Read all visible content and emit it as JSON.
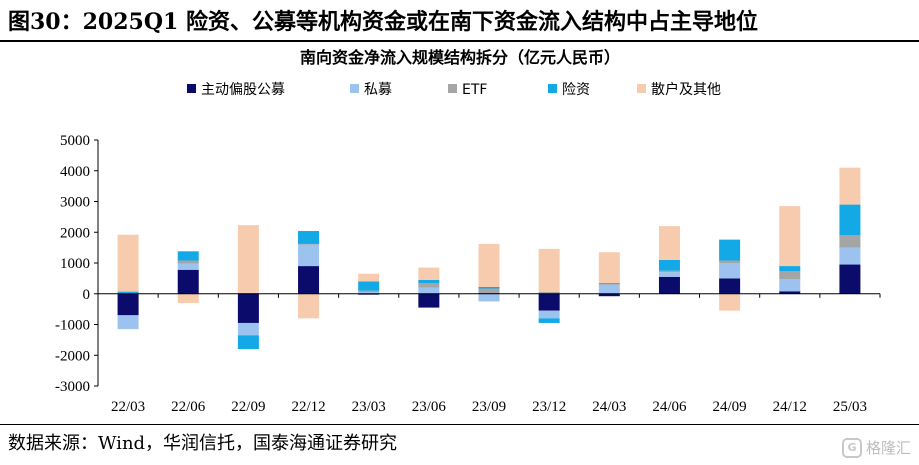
{
  "header": {
    "title": "图30：2025Q1 险资、公募等机构资金或在南下资金流入结构中占主导地位"
  },
  "footer": {
    "source": "数据来源：Wind，华润信托，国泰海通证券研究"
  },
  "watermark": {
    "logo": "G",
    "text": "格隆汇"
  },
  "chart_data": {
    "type": "bar",
    "stacked": true,
    "title": "南向资金净流入规模结构拆分（亿元人民币）",
    "xlabel": "",
    "ylabel": "",
    "ylim": [
      -3000,
      5000
    ],
    "yticks": [
      -3000,
      -2000,
      -1000,
      0,
      1000,
      2000,
      3000,
      4000,
      5000
    ],
    "legend_position": "top",
    "categories": [
      "22/03",
      "22/06",
      "22/09",
      "22/12",
      "23/03",
      "23/06",
      "23/09",
      "23/12",
      "24/03",
      "24/06",
      "24/09",
      "24/12",
      "25/03"
    ],
    "series": [
      {
        "name": "主动偏股公募",
        "color": "#0b0b6b",
        "values": [
          -700,
          780,
          -950,
          900,
          -30,
          -450,
          20,
          -550,
          -80,
          550,
          500,
          80,
          950
        ]
      },
      {
        "name": "私募",
        "color": "#9cc3f0",
        "values": [
          -450,
          200,
          -400,
          700,
          50,
          200,
          -250,
          -250,
          300,
          150,
          500,
          400,
          550
        ]
      },
      {
        "name": "ETF",
        "color": "#a5a5a5",
        "values": [
          20,
          100,
          30,
          20,
          50,
          150,
          150,
          60,
          30,
          50,
          80,
          250,
          400
        ]
      },
      {
        "name": "险资",
        "color": "#13a9e6",
        "values": [
          50,
          300,
          -450,
          420,
          300,
          100,
          50,
          -150,
          20,
          350,
          680,
          170,
          1000
        ]
      },
      {
        "name": "散户及其他",
        "color": "#f7cbae",
        "values": [
          1850,
          -300,
          2200,
          -800,
          250,
          400,
          1400,
          1400,
          1000,
          1100,
          -550,
          1950,
          1200
        ]
      }
    ]
  }
}
